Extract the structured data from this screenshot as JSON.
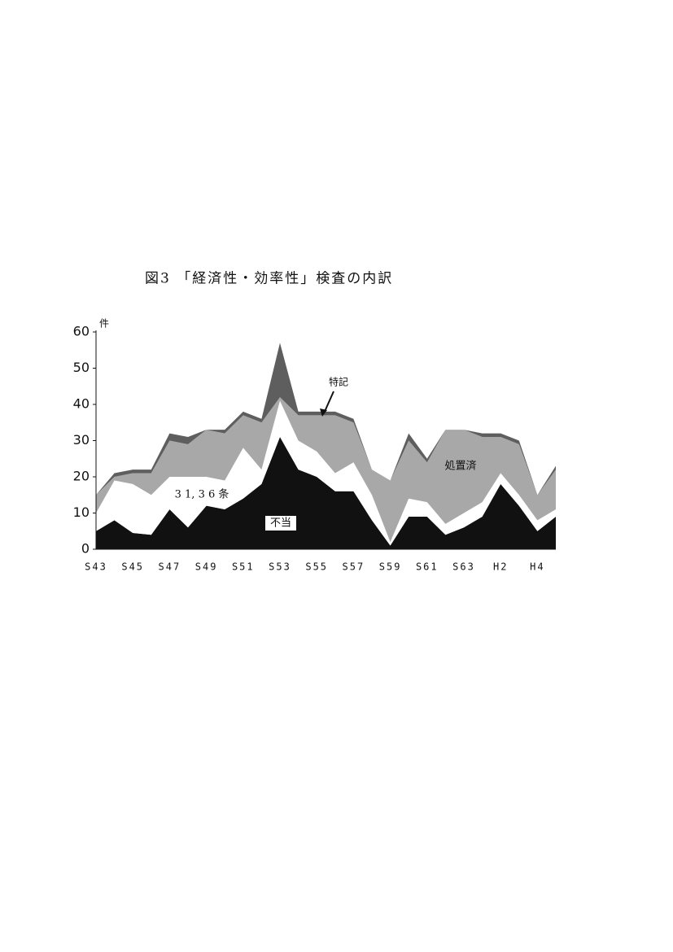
{
  "chart_data": {
    "type": "stacked-area",
    "title": "図3 「経済性・効率性」検査の内訳",
    "y_label": "件",
    "categories": [
      "S43",
      null,
      "S45",
      null,
      "S47",
      null,
      "S49",
      null,
      "S51",
      null,
      "S53",
      null,
      "S55",
      null,
      "S57",
      null,
      "S59",
      null,
      "S61",
      null,
      "S63",
      null,
      "H2",
      null,
      "H4",
      null
    ],
    "ylim": [
      0,
      60
    ],
    "yticks": [
      0,
      10,
      20,
      30,
      40,
      50,
      60
    ],
    "series": [
      {
        "name": "不当",
        "color": "#111111",
        "values": [
          5,
          8,
          4.5,
          4,
          11,
          6,
          12,
          11,
          14,
          18,
          31,
          22,
          20,
          16,
          16,
          8,
          1,
          9,
          9,
          4,
          6,
          9,
          18,
          12,
          5,
          9
        ]
      },
      {
        "name": "3 1, 3 6 条",
        "color": "#ffffff",
        "values": [
          5,
          11,
          13.5,
          11,
          9,
          14,
          8,
          8,
          14,
          4,
          10,
          8,
          7,
          5,
          8,
          7,
          1,
          5,
          4,
          3,
          4,
          4,
          3,
          3,
          3,
          2
        ]
      },
      {
        "name": "処置済",
        "color": "#a8a8a8",
        "values": [
          5,
          1,
          3,
          6,
          10,
          9,
          13,
          13,
          9,
          13,
          1,
          7,
          10,
          16,
          11,
          7,
          17,
          16,
          11,
          26,
          23,
          18,
          10,
          14,
          7,
          11
        ]
      },
      {
        "name": "特記",
        "color": "#5e5e5e",
        "values": [
          0,
          1,
          1,
          1,
          2,
          2,
          0,
          1,
          1,
          1,
          15,
          1,
          1,
          1,
          1,
          0,
          0,
          2,
          1,
          0,
          0,
          1,
          1,
          1,
          0,
          1
        ]
      }
    ]
  }
}
